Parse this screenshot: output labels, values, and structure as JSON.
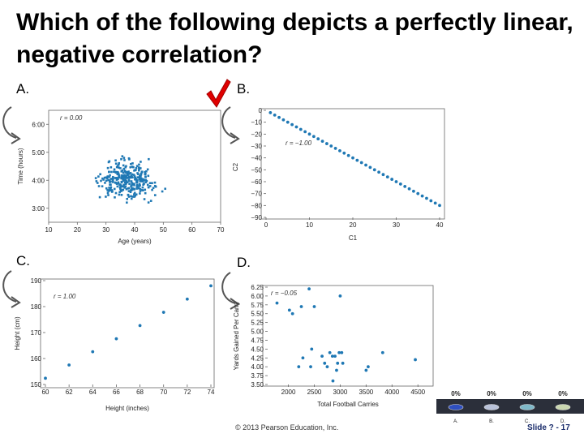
{
  "slide": {
    "title": "Which of the following depicts a perfectly linear, negative correlation?",
    "footer": "© 2013 Pearson Education, Inc.",
    "slide_number": "Slide ? - 17"
  },
  "labels": {
    "a": "A.",
    "b": "B.",
    "c": "C.",
    "d": "D."
  },
  "poll": {
    "options": [
      {
        "percent": "0%",
        "label": "A."
      },
      {
        "percent": "0%",
        "label": "B."
      },
      {
        "percent": "0%",
        "label": "C."
      },
      {
        "percent": "0%",
        "label": "D."
      }
    ],
    "colors": [
      "#2f4fbf",
      "#b9c2d9",
      "#7fb8c8",
      "#c9d6b0"
    ]
  },
  "chart_data": [
    {
      "type": "scatter",
      "annotation": "r = 0.00",
      "xlabel": "Age (years)",
      "ylabel": "Time (hours)",
      "xlim": [
        10,
        70
      ],
      "ylim": [
        2.5,
        6.5
      ],
      "xticks": [
        "10",
        "20",
        "30",
        "40",
        "50",
        "60",
        "70"
      ],
      "yticks": [
        "3:00",
        "4:00",
        "5:00",
        "6:00"
      ],
      "ytick_values": [
        3,
        4,
        5,
        6
      ],
      "cluster": {
        "x_center": 37,
        "x_spread": 10,
        "y_center": 4.0,
        "y_spread": 0.55,
        "count": 320
      }
    },
    {
      "type": "scatter",
      "annotation": "r = −1.00",
      "xlabel": "C1",
      "ylabel": "C2",
      "xlim": [
        0,
        40
      ],
      "ylim": [
        -90,
        0
      ],
      "xticks": [
        "0",
        "10",
        "20",
        "30",
        "40"
      ],
      "yticks": [
        "0",
        "−10",
        "−20",
        "−30",
        "−40",
        "−50",
        "−60",
        "−70",
        "−80",
        "−90"
      ],
      "ytick_values": [
        0,
        -10,
        -20,
        -30,
        -40,
        -50,
        -60,
        -70,
        -80,
        -90
      ],
      "x": [
        1,
        2,
        3,
        4,
        5,
        6,
        7,
        8,
        9,
        10,
        11,
        12,
        13,
        14,
        15,
        16,
        17,
        18,
        19,
        20,
        21,
        22,
        23,
        24,
        25,
        26,
        27,
        28,
        29,
        30,
        31,
        32,
        33,
        34,
        35,
        36,
        37,
        38,
        39,
        40
      ],
      "y": [
        -2,
        -4,
        -6,
        -8,
        -10,
        -12,
        -14,
        -16,
        -18,
        -20,
        -22,
        -24,
        -26,
        -28,
        -30,
        -32,
        -34,
        -36,
        -38,
        -40,
        -42,
        -44,
        -46,
        -48,
        -50,
        -52,
        -54,
        -56,
        -58,
        -60,
        -62,
        -64,
        -66,
        -68,
        -70,
        -72,
        -74,
        -76,
        -78,
        -80
      ]
    },
    {
      "type": "scatter",
      "annotation": "r = 1.00",
      "xlabel": "Height (inches)",
      "ylabel": "Height (cm)",
      "xlim": [
        60,
        74
      ],
      "ylim": [
        150,
        190
      ],
      "xticks": [
        "60",
        "62",
        "64",
        "66",
        "68",
        "70",
        "72",
        "74"
      ],
      "xtick_values": [
        60,
        62,
        64,
        66,
        68,
        70,
        72,
        74
      ],
      "yticks": [
        "150",
        "160",
        "170",
        "180",
        "190"
      ],
      "ytick_values": [
        150,
        160,
        170,
        180,
        190
      ],
      "x": [
        60,
        62,
        64,
        66,
        68,
        70,
        72,
        74
      ],
      "y": [
        152.4,
        157.5,
        162.6,
        167.6,
        172.7,
        177.8,
        182.9,
        188.0
      ]
    },
    {
      "type": "scatter",
      "annotation": "r = −0.05",
      "xlabel": "Total Football Carries",
      "ylabel": "Yards Gained Per Carry",
      "xlim": [
        1600,
        4700
      ],
      "ylim": [
        3.5,
        6.25
      ],
      "xticks": [
        "2000",
        "2500",
        "3000",
        "3500",
        "4000",
        "4500"
      ],
      "xtick_values": [
        2000,
        2500,
        3000,
        3500,
        4000,
        4500
      ],
      "yticks": [
        "3.50",
        "3.75",
        "4.00",
        "4.25",
        "4.50",
        "4.75",
        "5.00",
        "5.25",
        "5.50",
        "5.75",
        "6.00",
        "6.25"
      ],
      "ytick_values": [
        3.5,
        3.75,
        4.0,
        4.25,
        4.5,
        4.75,
        5.0,
        5.25,
        5.5,
        5.75,
        6.0,
        6.25
      ],
      "x": [
        1780,
        2020,
        2080,
        2200,
        2250,
        2280,
        2400,
        2430,
        2450,
        2500,
        2650,
        2700,
        2750,
        2800,
        2850,
        2860,
        2900,
        2930,
        2950,
        2980,
        3000,
        3030,
        3050,
        3500,
        3540,
        3820,
        4450
      ],
      "y": [
        5.8,
        5.6,
        5.5,
        4.0,
        5.7,
        4.25,
        6.2,
        4.0,
        4.5,
        5.7,
        4.3,
        4.1,
        4.0,
        4.4,
        4.3,
        3.6,
        4.3,
        3.9,
        4.1,
        4.4,
        6.0,
        4.4,
        4.1,
        3.9,
        4.0,
        4.4,
        4.2
      ]
    }
  ]
}
